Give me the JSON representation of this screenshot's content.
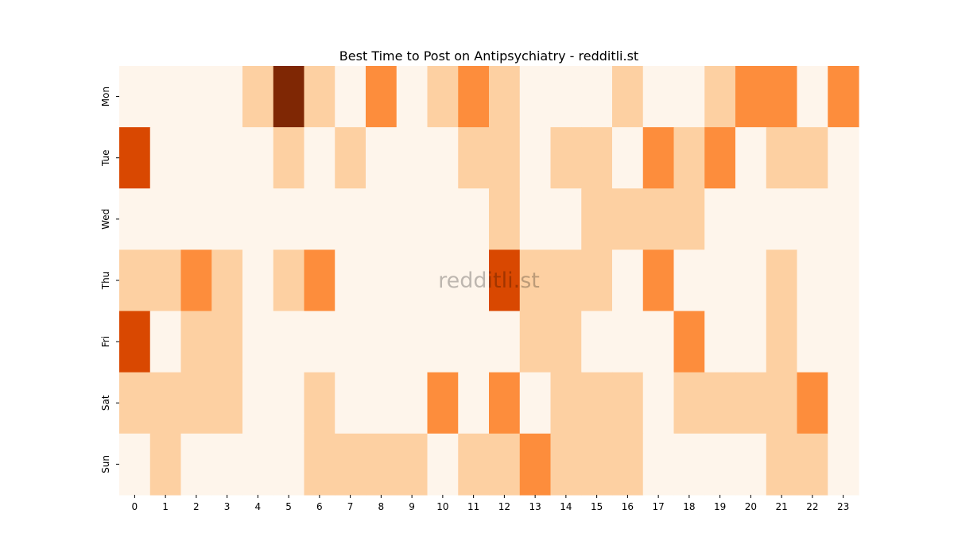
{
  "chart_data": {
    "type": "heatmap",
    "title": "Best Time to Post on Antipsychiatry - redditli.st",
    "watermark": "redditli.st",
    "xlabel": "",
    "ylabel": "",
    "x": [
      "0",
      "1",
      "2",
      "3",
      "4",
      "5",
      "6",
      "7",
      "8",
      "9",
      "10",
      "11",
      "12",
      "13",
      "14",
      "15",
      "16",
      "17",
      "18",
      "19",
      "20",
      "21",
      "22",
      "23"
    ],
    "y": [
      "Mon",
      "Tue",
      "Wed",
      "Thu",
      "Fri",
      "Sat",
      "Sun"
    ],
    "colormap": "Oranges",
    "value_range": [
      0,
      4
    ],
    "colors": [
      "#fef5eb",
      "#fdd0a2",
      "#fd8d3c",
      "#d94801",
      "#7f2704"
    ],
    "values": [
      [
        0,
        0,
        0,
        0,
        1,
        4,
        1,
        0,
        2,
        0,
        1,
        2,
        1,
        0,
        0,
        0,
        1,
        0,
        0,
        1,
        2,
        2,
        0,
        2
      ],
      [
        3,
        0,
        0,
        0,
        0,
        1,
        0,
        1,
        0,
        0,
        0,
        1,
        1,
        0,
        1,
        1,
        0,
        2,
        1,
        2,
        0,
        1,
        1,
        0
      ],
      [
        0,
        0,
        0,
        0,
        0,
        0,
        0,
        0,
        0,
        0,
        0,
        0,
        1,
        0,
        0,
        1,
        1,
        1,
        1,
        0,
        0,
        0,
        0,
        0
      ],
      [
        1,
        1,
        2,
        1,
        0,
        1,
        2,
        0,
        0,
        0,
        0,
        0,
        3,
        1,
        1,
        1,
        0,
        2,
        0,
        0,
        0,
        1,
        0,
        0
      ],
      [
        3,
        0,
        1,
        1,
        0,
        0,
        0,
        0,
        0,
        0,
        0,
        0,
        0,
        1,
        1,
        0,
        0,
        0,
        2,
        0,
        0,
        1,
        0,
        0
      ],
      [
        1,
        1,
        1,
        1,
        0,
        0,
        1,
        0,
        0,
        0,
        2,
        0,
        2,
        0,
        1,
        1,
        1,
        0,
        1,
        1,
        1,
        1,
        2,
        0
      ],
      [
        0,
        1,
        0,
        0,
        0,
        0,
        1,
        1,
        1,
        1,
        0,
        1,
        1,
        2,
        1,
        1,
        1,
        0,
        0,
        0,
        0,
        1,
        1,
        0
      ]
    ]
  }
}
